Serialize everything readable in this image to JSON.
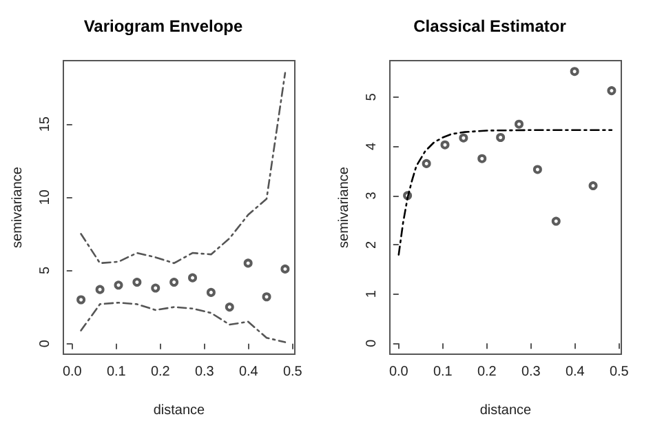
{
  "chart_data": [
    {
      "type": "line",
      "title": "Variogram Envelope",
      "xlabel": "distance",
      "ylabel": "semivariance",
      "xlim": [
        -0.02,
        0.505
      ],
      "xticks": [
        {
          "value": 0,
          "label": "0.0"
        },
        0.1,
        0.2,
        0.3,
        0.4,
        0.5
      ],
      "ylim": [
        -0.72,
        19.34
      ],
      "yticks": [
        0,
        5,
        10,
        15
      ],
      "grid": false,
      "x": [
        0.02,
        0.063,
        0.105,
        0.147,
        0.189,
        0.231,
        0.273,
        0.315,
        0.357,
        0.399,
        0.441,
        0.483
      ],
      "series": [
        {
          "color": "#555555",
          "line_style": "dashed",
          "marker": "none",
          "values": [
            7.5,
            5.5,
            5.6,
            6.2,
            5.9,
            5.5,
            6.2,
            6.1,
            7.2,
            8.8,
            9.9,
            18.5
          ]
        },
        {
          "color": "#555555",
          "line_style": "dashed",
          "marker": "none",
          "values": [
            0.9,
            2.7,
            2.8,
            2.7,
            2.3,
            2.5,
            2.4,
            2.1,
            1.3,
            1.5,
            0.4,
            0.1
          ]
        },
        {
          "type": "scatter",
          "color": "#333333",
          "marker": "circle",
          "values": [
            3.0,
            3.7,
            4.0,
            4.2,
            3.8,
            4.2,
            4.5,
            3.5,
            2.5,
            5.5,
            3.2,
            5.1
          ]
        }
      ]
    },
    {
      "type": "scatter",
      "title": "Classical Estimator",
      "xlabel": "distance",
      "ylabel": "semivariance",
      "xlim": [
        -0.02,
        0.505
      ],
      "xticks": [
        {
          "value": 0,
          "label": "0.0"
        },
        0.1,
        0.2,
        0.3,
        0.4,
        0.5
      ],
      "ylim": [
        -0.22,
        5.74
      ],
      "yticks": [
        0,
        1,
        2,
        3,
        4,
        5
      ],
      "grid": false,
      "x": [
        0.02,
        0.063,
        0.105,
        0.147,
        0.189,
        0.231,
        0.273,
        0.315,
        0.357,
        0.399,
        0.441,
        0.483
      ],
      "series": [
        {
          "color": "#333333",
          "marker": "circle",
          "values": [
            3.0,
            3.65,
            4.03,
            4.17,
            3.75,
            4.18,
            4.45,
            3.53,
            2.48,
            5.52,
            3.2,
            5.13
          ]
        },
        {
          "type": "line",
          "color": "#000000",
          "line_style": "dashed",
          "marker": "none",
          "x": [
            0,
            0.01,
            0.02,
            0.03,
            0.04,
            0.06,
            0.08,
            0.1,
            0.12,
            0.15,
            0.2,
            0.3,
            0.483
          ],
          "values": [
            1.8,
            2.45,
            2.95,
            3.3,
            3.6,
            3.9,
            4.08,
            4.18,
            4.25,
            4.29,
            4.32,
            4.33,
            4.33
          ]
        }
      ]
    }
  ]
}
